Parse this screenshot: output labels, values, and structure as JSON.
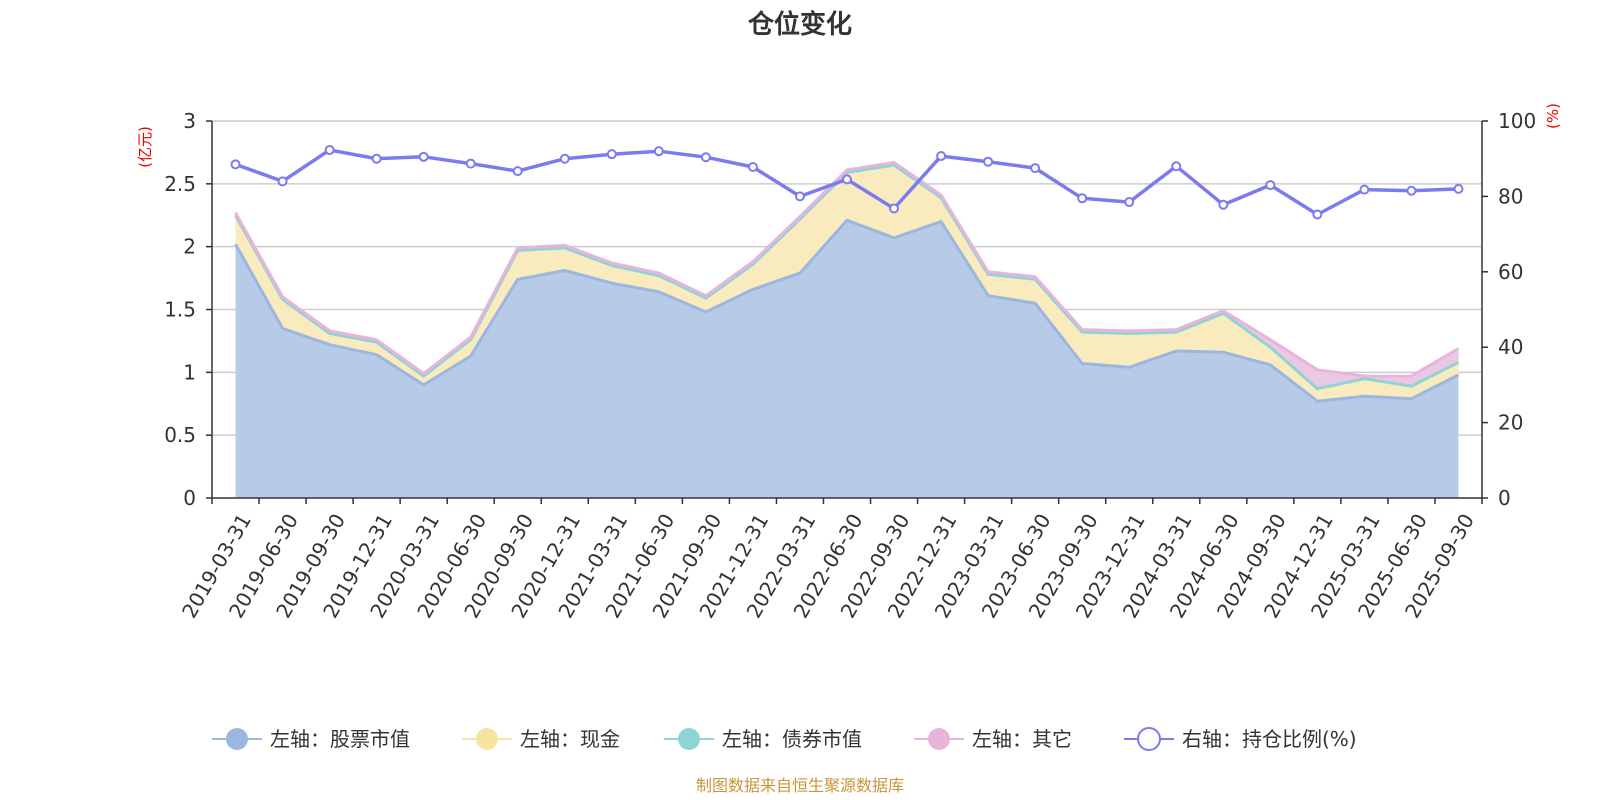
{
  "chart_data": {
    "type": "area",
    "title": "仓位变化",
    "left_axis": {
      "unit": "(亿元)",
      "ylim": [
        0,
        3
      ],
      "ticks": [
        "0",
        "0.5",
        "1",
        "1.5",
        "2",
        "2.5",
        "3"
      ],
      "tick_values": [
        0,
        0.5,
        1,
        1.5,
        2,
        2.5,
        3
      ]
    },
    "right_axis": {
      "unit": "(%)",
      "ylim": [
        0,
        100
      ],
      "ticks": [
        "0",
        "20",
        "40",
        "60",
        "80",
        "100"
      ],
      "tick_values": [
        0,
        20,
        40,
        60,
        80,
        100
      ]
    },
    "categories": [
      "2019-03-31",
      "2019-06-30",
      "2019-09-30",
      "2019-12-31",
      "2020-03-31",
      "2020-06-30",
      "2020-09-30",
      "2020-12-31",
      "2021-03-31",
      "2021-06-30",
      "2021-09-30",
      "2021-12-31",
      "2022-03-31",
      "2022-06-30",
      "2022-09-30",
      "2022-12-31",
      "2023-03-31",
      "2023-06-30",
      "2023-09-30",
      "2023-12-31",
      "2024-03-31",
      "2024-06-30",
      "2024-09-30",
      "2024-12-31",
      "2025-03-31",
      "2025-06-30",
      "2025-09-30"
    ],
    "series": [
      {
        "name": "左轴：股票市值",
        "axis": "left",
        "stack": true,
        "color": "#9bb7e0",
        "fill": "#b7cbe9",
        "values": [
          2.02,
          1.35,
          1.22,
          1.14,
          0.9,
          1.13,
          1.74,
          1.81,
          1.71,
          1.64,
          1.48,
          1.66,
          1.79,
          2.21,
          2.07,
          2.2,
          1.61,
          1.55,
          1.07,
          1.04,
          1.17,
          1.16,
          1.06,
          0.77,
          0.81,
          0.79,
          0.98
        ]
      },
      {
        "name": "左轴：现金",
        "axis": "left",
        "stack": true,
        "color": "#f7e4a0",
        "fill": "#f9ebbd",
        "values": [
          0.23,
          0.23,
          0.09,
          0.1,
          0.07,
          0.13,
          0.23,
          0.18,
          0.14,
          0.13,
          0.11,
          0.2,
          0.43,
          0.38,
          0.58,
          0.19,
          0.17,
          0.19,
          0.25,
          0.27,
          0.15,
          0.31,
          0.14,
          0.1,
          0.14,
          0.1,
          0.1
        ]
      },
      {
        "name": "左轴：债券市值",
        "axis": "left",
        "stack": true,
        "color": "#8fd3d6",
        "fill": "#bfe6e8",
        "values": [
          0,
          0,
          0,
          0,
          0,
          0,
          0,
          0,
          0,
          0,
          0,
          0,
          0,
          0,
          0,
          0,
          0,
          0,
          0,
          0,
          0,
          0,
          0,
          0,
          0,
          0,
          0
        ]
      },
      {
        "name": "左轴：其它",
        "axis": "left",
        "stack": true,
        "color": "#e8b4dc",
        "fill": "#eac8e4",
        "values": [
          0.02,
          0.02,
          0.02,
          0.02,
          0.02,
          0.02,
          0.02,
          0.02,
          0.02,
          0.02,
          0.02,
          0.02,
          0.02,
          0.02,
          0.02,
          0.02,
          0.02,
          0.02,
          0.02,
          0.02,
          0.02,
          0.02,
          0.06,
          0.15,
          0.02,
          0.08,
          0.11
        ]
      },
      {
        "name": "右轴：持仓比例(%)",
        "axis": "right",
        "stack": false,
        "color": "#7b7bef",
        "values": [
          88.5,
          84.0,
          92.3,
          90.0,
          90.5,
          88.7,
          86.7,
          90.0,
          91.2,
          92.0,
          90.4,
          87.8,
          80.0,
          84.5,
          76.8,
          90.7,
          89.2,
          87.5,
          79.5,
          78.5,
          88.0,
          77.8,
          83.0,
          75.2,
          81.8,
          81.5,
          82.0
        ]
      }
    ],
    "legend_position": "bottom"
  },
  "footer": {
    "source": "制图数据来自恒生聚源数据库"
  }
}
